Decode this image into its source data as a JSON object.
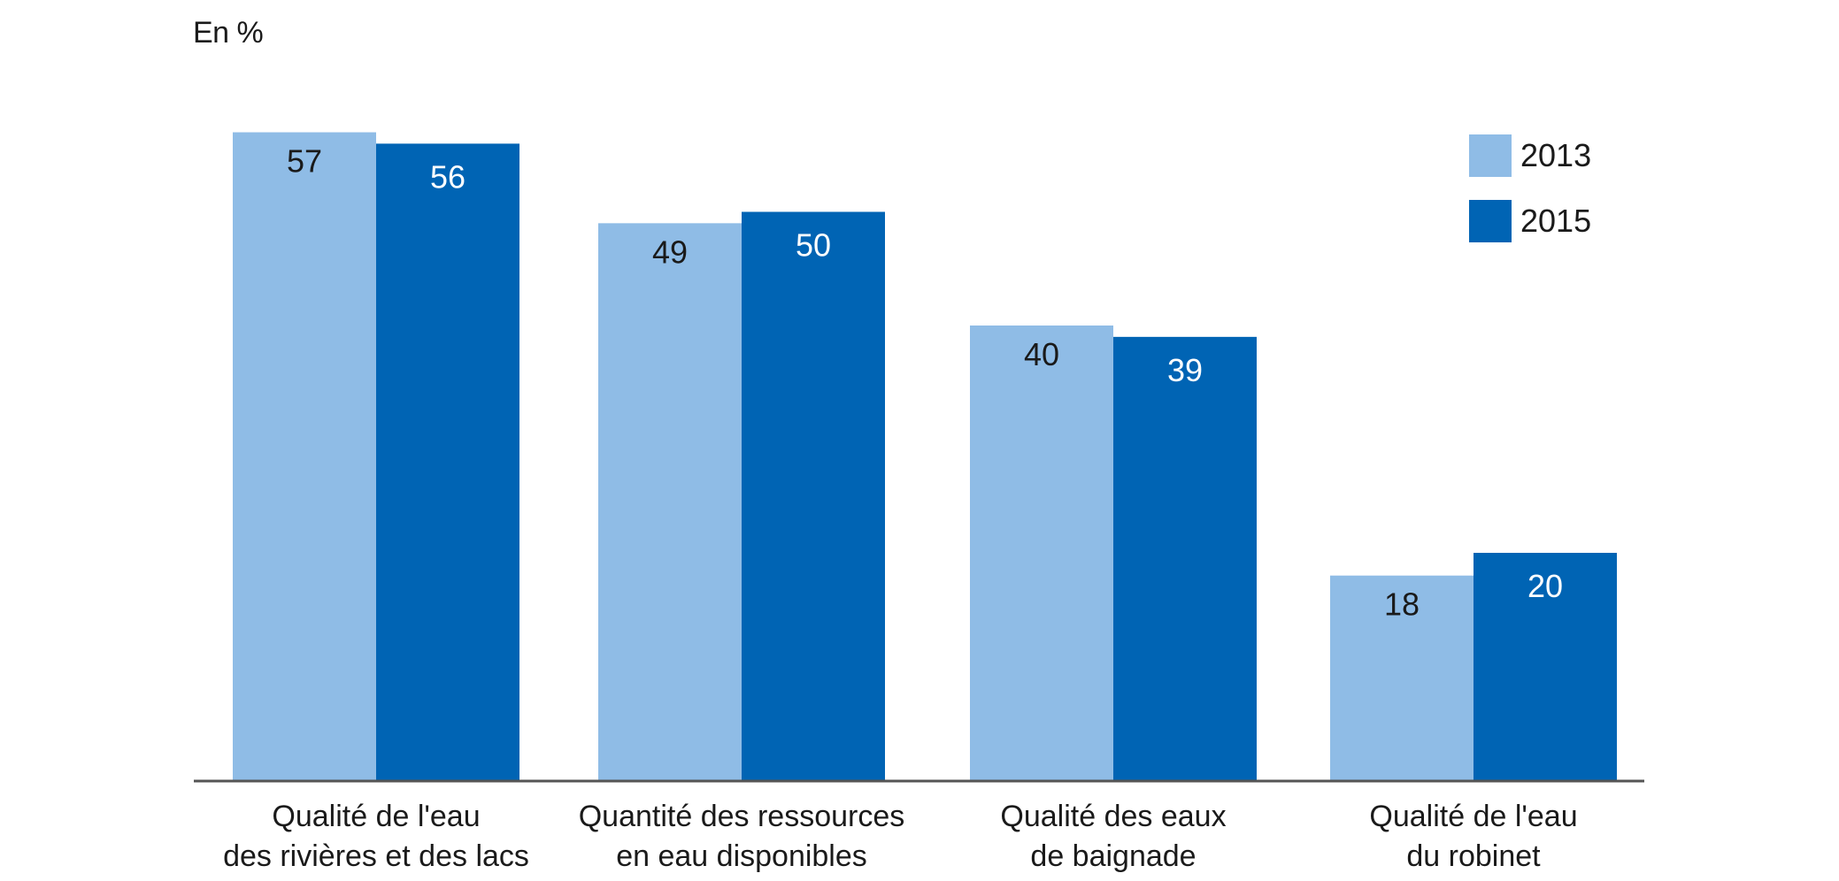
{
  "chart_data": {
    "type": "bar",
    "unit_label": "En %",
    "categories": [
      [
        "Qualité de l'eau",
        "des rivières et des lacs"
      ],
      [
        "Quantité des ressources",
        "en eau disponibles"
      ],
      [
        "Qualité des eaux",
        "de baignade"
      ],
      [
        "Qualité de l'eau",
        "du robinet"
      ]
    ],
    "series": [
      {
        "name": "2013",
        "color": "#8fbce6",
        "label_color": "#1a1a1a",
        "values": [
          57,
          49,
          40,
          18
        ]
      },
      {
        "name": "2015",
        "color": "#0064b4",
        "label_color": "#ffffff",
        "values": [
          56,
          50,
          39,
          20
        ]
      }
    ],
    "ylim": [
      0,
      60
    ],
    "grid": false,
    "legend_position": "top-right"
  }
}
